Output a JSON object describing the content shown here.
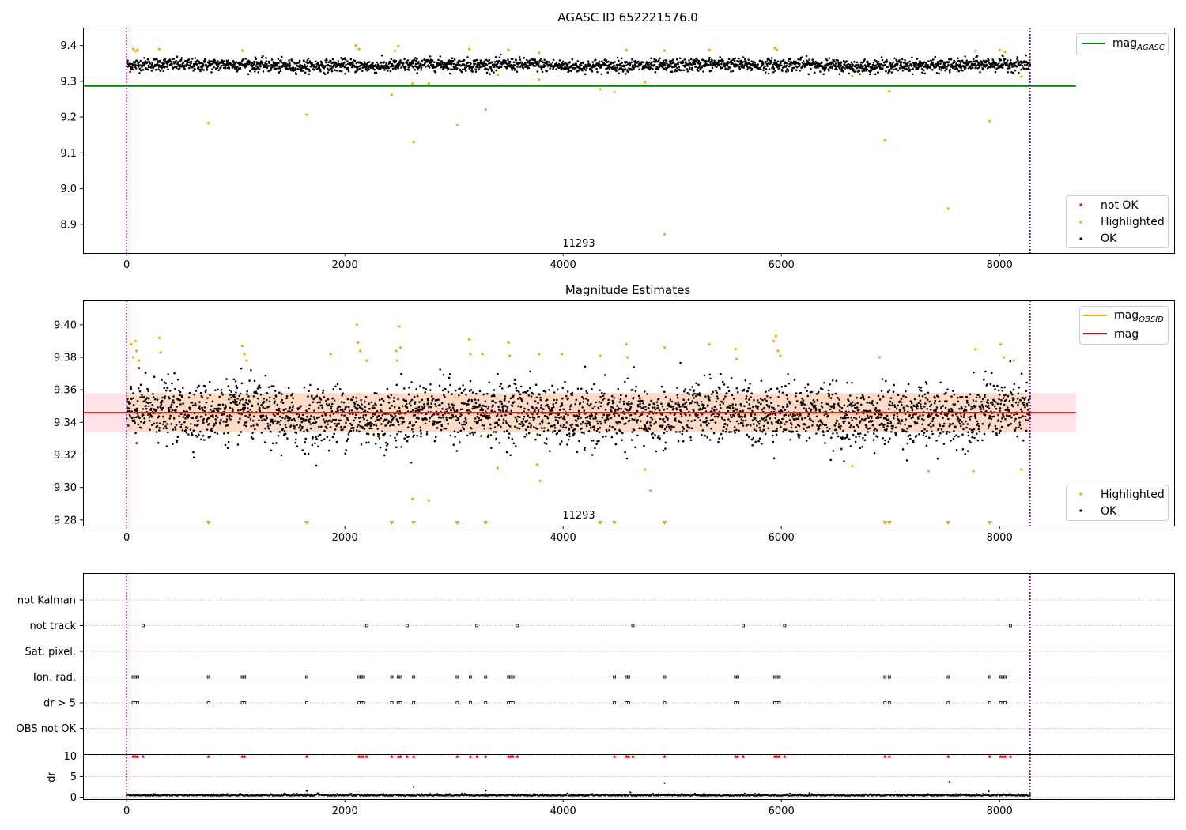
{
  "figure": {
    "title": "AGASC ID 652221576.0",
    "obs_label": "11293"
  },
  "colors": {
    "ok": "#000000",
    "highlighted": "#ffa500",
    "not_ok": "#ff0000",
    "mag_agasc": "#008000",
    "mag": "#ff0000",
    "mag_obsid": "#ffa500",
    "obs_boundary": "#800080",
    "band": "#ffc0cb",
    "grid": "#b0b0b0"
  },
  "chart_data": [
    {
      "type": "scatter",
      "panel": "top",
      "title": "AGASC ID 652221576.0",
      "xlim": [
        -400,
        9600
      ],
      "ylim": [
        8.82,
        9.45
      ],
      "xticks": [
        0,
        2000,
        4000,
        6000,
        8000
      ],
      "yticks": [
        8.9,
        9.0,
        9.1,
        9.2,
        9.3,
        9.4
      ],
      "x_range": [
        0,
        8280
      ],
      "ok_band": {
        "center": 9.345,
        "spread": 0.009,
        "min": 9.32,
        "max": 9.38
      },
      "mag_agasc": 9.287,
      "mag_agasc_xrange": [
        -400,
        8700
      ],
      "obs_boundaries": [
        0,
        8280
      ],
      "annotation": {
        "text": "11293",
        "x": 4150,
        "y": 8.84
      },
      "highlighted_points": [
        {
          "x": 750,
          "y": 9.183
        },
        {
          "x": 1650,
          "y": 9.207
        },
        {
          "x": 2430,
          "y": 9.262
        },
        {
          "x": 2630,
          "y": 9.13
        },
        {
          "x": 2620,
          "y": 9.294
        },
        {
          "x": 2770,
          "y": 9.294
        },
        {
          "x": 3030,
          "y": 9.177
        },
        {
          "x": 3290,
          "y": 9.221
        },
        {
          "x": 3780,
          "y": 9.305
        },
        {
          "x": 4340,
          "y": 9.278
        },
        {
          "x": 4470,
          "y": 9.27
        },
        {
          "x": 4750,
          "y": 9.298
        },
        {
          "x": 4930,
          "y": 8.872
        },
        {
          "x": 6950,
          "y": 9.135
        },
        {
          "x": 6990,
          "y": 9.272
        },
        {
          "x": 7530,
          "y": 8.944
        },
        {
          "x": 7910,
          "y": 9.189
        },
        {
          "x": 6650,
          "y": 9.314
        },
        {
          "x": 8200,
          "y": 9.313
        },
        {
          "x": 3400,
          "y": 9.318
        },
        {
          "x": 60,
          "y": 9.39
        },
        {
          "x": 80,
          "y": 9.384
        },
        {
          "x": 100,
          "y": 9.388
        },
        {
          "x": 300,
          "y": 9.39
        },
        {
          "x": 1060,
          "y": 9.386
        },
        {
          "x": 2100,
          "y": 9.4
        },
        {
          "x": 2130,
          "y": 9.39
        },
        {
          "x": 2460,
          "y": 9.385
        },
        {
          "x": 2490,
          "y": 9.399
        },
        {
          "x": 3140,
          "y": 9.39
        },
        {
          "x": 3500,
          "y": 9.388
        },
        {
          "x": 3780,
          "y": 9.38
        },
        {
          "x": 4580,
          "y": 9.388
        },
        {
          "x": 4930,
          "y": 9.386
        },
        {
          "x": 5340,
          "y": 9.388
        },
        {
          "x": 5940,
          "y": 9.393
        },
        {
          "x": 5960,
          "y": 9.388
        },
        {
          "x": 7780,
          "y": 9.385
        },
        {
          "x": 8000,
          "y": 9.388
        },
        {
          "x": 8050,
          "y": 9.382
        }
      ],
      "legends": [
        {
          "position": "upper right",
          "entries": [
            {
              "label": "mag",
              "subscript": "AGASC"
            }
          ]
        },
        {
          "position": "lower right",
          "entries": [
            {
              "label": "not OK"
            },
            {
              "label": "Highlighted"
            },
            {
              "label": "OK"
            }
          ]
        }
      ]
    },
    {
      "type": "scatter",
      "panel": "middle",
      "title": "Magnitude Estimates",
      "xlim": [
        -400,
        9600
      ],
      "ylim": [
        9.2765,
        9.415
      ],
      "xticks": [
        0,
        2000,
        4000,
        6000,
        8000
      ],
      "yticks": [
        9.28,
        9.3,
        9.32,
        9.34,
        9.36,
        9.38,
        9.4
      ],
      "x_range": [
        0,
        8280
      ],
      "ok_band": {
        "center": 9.345,
        "spread": 0.009,
        "min": 9.312,
        "max": 9.38
      },
      "mag": 9.346,
      "mag_band": [
        9.334,
        9.358
      ],
      "mag_xrange": [
        -400,
        8700
      ],
      "obs_boundaries": [
        0,
        8280
      ],
      "annotation": {
        "text": "11293",
        "x": 4150,
        "y": 9.282
      },
      "highlighted_points": [
        {
          "x": 40,
          "y": 9.388
        },
        {
          "x": 60,
          "y": 9.38
        },
        {
          "x": 80,
          "y": 9.39
        },
        {
          "x": 90,
          "y": 9.384
        },
        {
          "x": 110,
          "y": 9.378
        },
        {
          "x": 300,
          "y": 9.392
        },
        {
          "x": 310,
          "y": 9.383
        },
        {
          "x": 1060,
          "y": 9.387
        },
        {
          "x": 1080,
          "y": 9.382
        },
        {
          "x": 1100,
          "y": 9.378
        },
        {
          "x": 1870,
          "y": 9.382
        },
        {
          "x": 2110,
          "y": 9.4
        },
        {
          "x": 2120,
          "y": 9.389
        },
        {
          "x": 2140,
          "y": 9.384
        },
        {
          "x": 2200,
          "y": 9.378
        },
        {
          "x": 2470,
          "y": 9.384
        },
        {
          "x": 2480,
          "y": 9.378
        },
        {
          "x": 2500,
          "y": 9.399
        },
        {
          "x": 2510,
          "y": 9.386
        },
        {
          "x": 3140,
          "y": 9.391
        },
        {
          "x": 3150,
          "y": 9.382
        },
        {
          "x": 3260,
          "y": 9.382
        },
        {
          "x": 3500,
          "y": 9.389
        },
        {
          "x": 3510,
          "y": 9.381
        },
        {
          "x": 3780,
          "y": 9.382
        },
        {
          "x": 3990,
          "y": 9.382
        },
        {
          "x": 4340,
          "y": 9.381
        },
        {
          "x": 4580,
          "y": 9.388
        },
        {
          "x": 4590,
          "y": 9.38
        },
        {
          "x": 4930,
          "y": 9.386
        },
        {
          "x": 5340,
          "y": 9.388
        },
        {
          "x": 5580,
          "y": 9.385
        },
        {
          "x": 5590,
          "y": 9.379
        },
        {
          "x": 5930,
          "y": 9.39
        },
        {
          "x": 5950,
          "y": 9.393
        },
        {
          "x": 5970,
          "y": 9.384
        },
        {
          "x": 5990,
          "y": 9.381
        },
        {
          "x": 6900,
          "y": 9.38
        },
        {
          "x": 7780,
          "y": 9.385
        },
        {
          "x": 8010,
          "y": 9.388
        },
        {
          "x": 8040,
          "y": 9.38
        },
        {
          "x": 8130,
          "y": 9.378
        },
        {
          "x": 3400,
          "y": 9.312
        },
        {
          "x": 3760,
          "y": 9.314
        },
        {
          "x": 3790,
          "y": 9.304
        },
        {
          "x": 4750,
          "y": 9.311
        },
        {
          "x": 4800,
          "y": 9.298
        },
        {
          "x": 6650,
          "y": 9.313
        },
        {
          "x": 7350,
          "y": 9.31
        },
        {
          "x": 7760,
          "y": 9.31
        },
        {
          "x": 8200,
          "y": 9.311
        },
        {
          "x": 2620,
          "y": 9.293
        },
        {
          "x": 2770,
          "y": 9.292
        }
      ],
      "below_limit_markers_x": [
        750,
        1650,
        2430,
        2630,
        3030,
        3290,
        4340,
        4470,
        4930,
        6950,
        6990,
        7530,
        7910
      ],
      "legends": [
        {
          "position": "upper right",
          "entries": [
            {
              "label": "mag",
              "subscript": "OBSID"
            },
            {
              "label": "mag"
            }
          ]
        },
        {
          "position": "lower right",
          "entries": [
            {
              "label": "Highlighted"
            },
            {
              "label": "OK"
            }
          ]
        }
      ]
    },
    {
      "type": "scatter",
      "panel": "flags",
      "xlim": [
        -400,
        9600
      ],
      "obs_boundaries": [
        0,
        8280
      ],
      "categories": [
        "not Kalman",
        "not track",
        "Sat. pixel.",
        "Ion. rad.",
        "dr > 5",
        "OBS not OK"
      ],
      "flags": {
        "not track": [
          150,
          2200,
          2570,
          3210,
          3580,
          4640,
          5650,
          6030,
          8100
        ],
        "Ion. rad.": [
          60,
          80,
          100,
          750,
          1060,
          1080,
          1650,
          2130,
          2150,
          2170,
          2430,
          2490,
          2510,
          2630,
          3030,
          3150,
          3290,
          3500,
          3520,
          3540,
          4470,
          4580,
          4600,
          4930,
          5580,
          5600,
          5940,
          5960,
          5980,
          6950,
          6990,
          7530,
          7910,
          8010,
          8030,
          8050
        ],
        "dr > 5": [
          60,
          80,
          100,
          750,
          1060,
          1080,
          1650,
          2130,
          2150,
          2170,
          2430,
          2490,
          2510,
          2630,
          3030,
          3150,
          3290,
          3500,
          3520,
          3540,
          4470,
          4580,
          4600,
          4930,
          5580,
          5600,
          5940,
          5960,
          5980,
          6950,
          6990,
          7530,
          7910,
          8010,
          8030,
          8050
        ]
      }
    },
    {
      "type": "scatter",
      "panel": "dr",
      "ylabel": "dr",
      "xlim": [
        -400,
        9600
      ],
      "ylim": [
        -0.5,
        10.5
      ],
      "xticks": [
        0,
        2000,
        4000,
        6000,
        8000
      ],
      "yticks": [
        0,
        5,
        10
      ],
      "obs_boundaries": [
        0,
        8280
      ],
      "ok_band": {
        "center": 0.3,
        "spread": 0.25
      },
      "capped_value": 10,
      "capped_points_x": [
        60,
        80,
        100,
        150,
        750,
        1060,
        1080,
        1650,
        2130,
        2150,
        2170,
        2200,
        2430,
        2490,
        2510,
        2570,
        2630,
        3030,
        3150,
        3210,
        3290,
        3500,
        3520,
        3540,
        3580,
        4470,
        4580,
        4600,
        4640,
        4930,
        5580,
        5600,
        5650,
        5940,
        5960,
        5980,
        6030,
        6950,
        6990,
        7530,
        7910,
        8010,
        8030,
        8050,
        8100
      ],
      "outliers": [
        {
          "x": 4930,
          "y": 3.4
        },
        {
          "x": 7540,
          "y": 3.7
        },
        {
          "x": 2630,
          "y": 2.5
        },
        {
          "x": 1650,
          "y": 1.5
        },
        {
          "x": 3290,
          "y": 1.6
        },
        {
          "x": 7900,
          "y": 1.4
        },
        {
          "x": 6260,
          "y": 1.0
        }
      ]
    }
  ]
}
